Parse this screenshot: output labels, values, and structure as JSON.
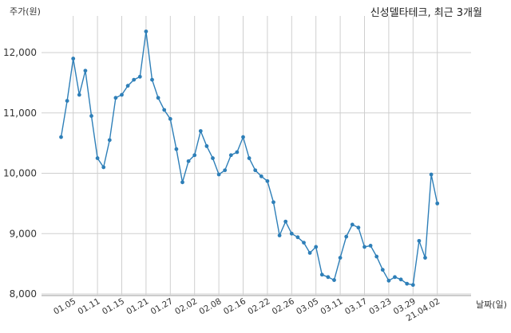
{
  "chart_data": {
    "type": "line",
    "title": "신성델타테크, 최근 3개월",
    "ylabel": "주가(원)",
    "xlabel": "날짜(일)",
    "ylim": [
      8000,
      12500
    ],
    "yticks": [
      8000,
      9000,
      10000,
      11000,
      12000
    ],
    "ytick_labels": [
      "8,000",
      "9,000",
      "10,000",
      "11,000",
      "12,000"
    ],
    "grid": true,
    "line_color": "#2e7fb8",
    "xtick_labels": [
      "01.05",
      "01.11",
      "01.15",
      "01.21",
      "01.27",
      "02.02",
      "02.08",
      "02.16",
      "02.22",
      "02.26",
      "03.05",
      "03.11",
      "03.17",
      "03.23",
      "03.29",
      "21.04.02"
    ],
    "xtick_index": [
      2,
      6,
      10,
      14,
      18,
      22,
      26,
      30,
      34,
      38,
      42,
      46,
      50,
      54,
      58,
      62
    ],
    "series": [
      {
        "values": [
          10600,
          11200,
          11900,
          11300,
          11700,
          10950,
          10250,
          10100,
          10550,
          11250,
          11300,
          11450,
          11550,
          11600,
          12350,
          11550,
          11250,
          11050,
          10900,
          10400,
          9850,
          10200,
          10300,
          10700,
          10450,
          10250,
          9980,
          10050,
          10300,
          10350,
          10600,
          10250,
          10050,
          9950,
          9870,
          9520,
          8970,
          9200,
          9000,
          8940,
          8850,
          8680,
          8780,
          8320,
          8280,
          8230,
          8600,
          8950,
          9150,
          9100,
          8780,
          8800,
          8620,
          8400,
          8220,
          8280,
          8240,
          8170,
          8150,
          8880,
          8600,
          9980,
          9500
        ]
      }
    ]
  }
}
